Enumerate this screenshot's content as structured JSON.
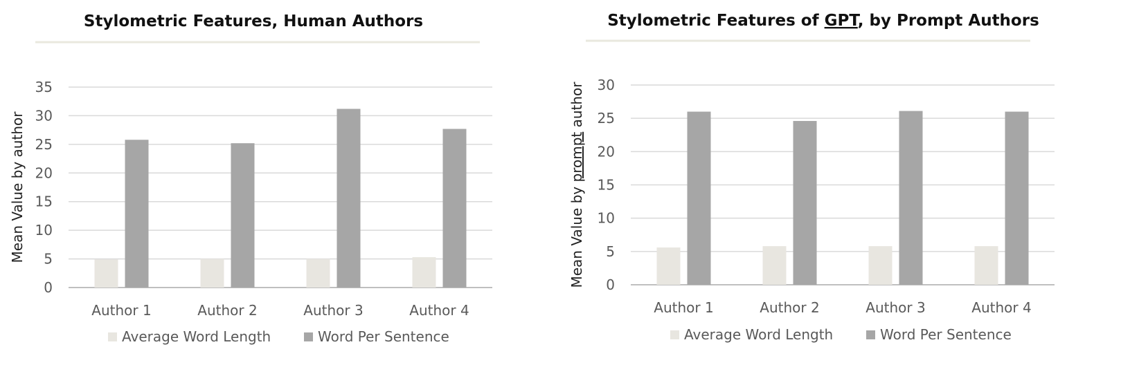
{
  "colors": {
    "series_light": "#E8E6E0",
    "series_dark": "#A6A6A6",
    "gridline": "#D9D9D9",
    "axis_line": "#BFBFBF",
    "title_rule": "#E9E8DE"
  },
  "chart_data": [
    {
      "type": "bar",
      "title": "Stylometric Features, Human Authors",
      "title_underlined_word": "",
      "xlabel": "",
      "ylabel": "Mean Value by author",
      "ylabel_underlined_word": "",
      "ylim": [
        0,
        35
      ],
      "yticks": [
        0,
        5,
        10,
        15,
        20,
        25,
        30,
        35
      ],
      "categories": [
        "Author 1",
        "Author 2",
        "Author 3",
        "Author 4"
      ],
      "series": [
        {
          "name": "Average Word Length",
          "values": [
            4.9,
            5.0,
            5.0,
            5.3
          ]
        },
        {
          "name": "Word Per Sentence",
          "values": [
            25.8,
            25.2,
            31.2,
            27.7
          ]
        }
      ],
      "grid": true,
      "legend": "bottom"
    },
    {
      "type": "bar",
      "title": "Stylometric Features of GPT, by Prompt Authors",
      "title_underlined_word": "GPT",
      "xlabel": "",
      "ylabel": "Mean Value by prompt author",
      "ylabel_underlined_word": "prompt",
      "ylim": [
        0,
        30
      ],
      "yticks": [
        0,
        5,
        10,
        15,
        20,
        25,
        30
      ],
      "categories": [
        "Author 1",
        "Author 2",
        "Author 3",
        "Author 4"
      ],
      "series": [
        {
          "name": "Average Word Length",
          "values": [
            5.6,
            5.8,
            5.8,
            5.8
          ]
        },
        {
          "name": "Word Per Sentence",
          "values": [
            26.0,
            24.6,
            26.1,
            26.0
          ]
        }
      ],
      "grid": true,
      "legend": "bottom"
    }
  ]
}
